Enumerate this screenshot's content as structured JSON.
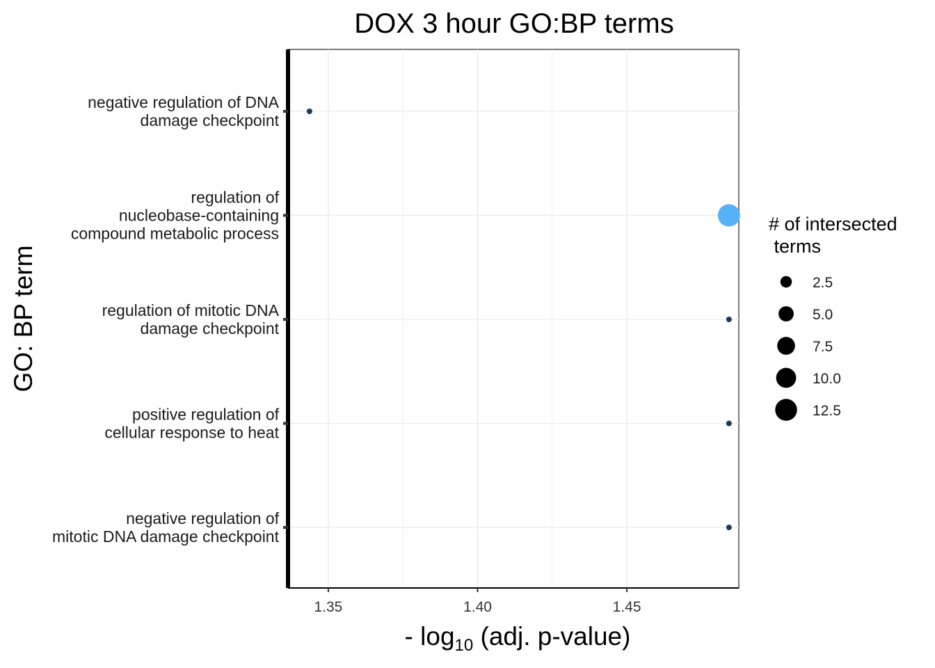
{
  "chart_data": {
    "type": "scatter",
    "title": "DOX 3 hour GO:BP terms",
    "xlabel": {
      "prefix": "- log",
      "subscript": "10",
      "suffix": " (adj. p-value)"
    },
    "ylabel": "GO: BP term",
    "xlim": [
      1.3365,
      1.4875
    ],
    "xticks": [
      "1.35",
      "1.40",
      "1.45"
    ],
    "grid": true,
    "categories": [
      {
        "lines": [
          "negative regulation of DNA",
          "damage checkpoint"
        ]
      },
      {
        "lines": [
          "regulation of",
          "nucleobase-containing",
          "compound metabolic process"
        ]
      },
      {
        "lines": [
          "regulation of mitotic DNA",
          "damage checkpoint"
        ]
      },
      {
        "lines": [
          "positive regulation of",
          "cellular response to heat"
        ]
      },
      {
        "lines": [
          "negative regulation of",
          "mitotic DNA damage checkpoint"
        ]
      }
    ],
    "points": [
      {
        "category_index": 0,
        "x": 1.3437,
        "intersected_terms": 1,
        "color": "#1b3a5c"
      },
      {
        "category_index": 1,
        "x": 1.4842,
        "intersected_terms": 13,
        "color": "#56b1f7"
      },
      {
        "category_index": 2,
        "x": 1.4842,
        "intersected_terms": 1,
        "color": "#1b3a5c"
      },
      {
        "category_index": 3,
        "x": 1.4842,
        "intersected_terms": 1,
        "color": "#1b3a5c"
      },
      {
        "category_index": 4,
        "x": 1.4842,
        "intersected_terms": 1,
        "color": "#1b3a5c"
      }
    ],
    "legend": {
      "title_lines": [
        "# of intersected",
        " terms"
      ],
      "placement": "right",
      "entries": [
        {
          "label": "2.5",
          "value": 2.5
        },
        {
          "label": "5.0",
          "value": 5.0
        },
        {
          "label": "7.5",
          "value": 7.5
        },
        {
          "label": "10.0",
          "value": 10.0
        },
        {
          "label": "12.5",
          "value": 12.5
        }
      ]
    },
    "colors": {
      "grid": "#ebebeb",
      "axis_line": "#000000",
      "legend_symbol": "#000000"
    }
  }
}
